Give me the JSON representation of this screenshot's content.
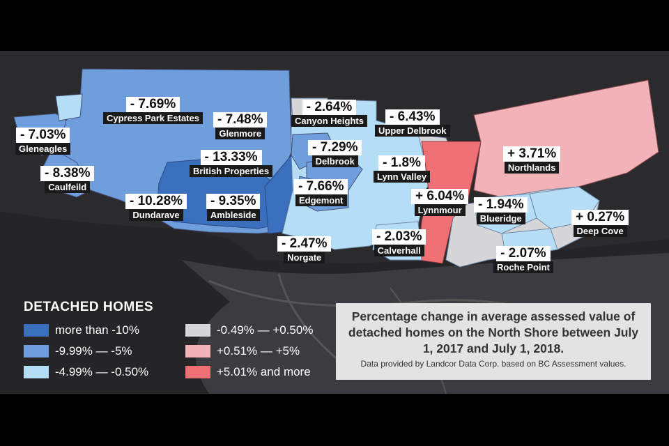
{
  "legend": {
    "title": "DETACHED HOMES",
    "items": [
      {
        "label": "more than -10%",
        "color": "#3a6fbe"
      },
      {
        "label": "-9.99% — -5%",
        "color": "#6e9fdc"
      },
      {
        "label": "-4.99% — -0.50%",
        "color": "#b5ddf5"
      },
      {
        "label": "-0.49% — +0.50%",
        "color": "#d6d6d8"
      },
      {
        "label": "+0.51% — +5%",
        "color": "#f2b3b8"
      },
      {
        "label": "+5.01% and more",
        "color": "#ee6f74"
      }
    ]
  },
  "neighbourhoods": [
    {
      "name": "Cypress Park Estates",
      "change": "- 7.69%"
    },
    {
      "name": "Glenmore",
      "change": "- 7.48%"
    },
    {
      "name": "Canyon Heights",
      "change": "- 2.64%"
    },
    {
      "name": "Upper Delbrook",
      "change": "- 6.43%"
    },
    {
      "name": "Gleneagles",
      "change": "- 7.03%"
    },
    {
      "name": "Delbrook",
      "change": "- 7.29%"
    },
    {
      "name": "Northlands",
      "change": "+ 3.71%"
    },
    {
      "name": "British Properties",
      "change": "- 13.33%"
    },
    {
      "name": "Lynn Valley",
      "change": "- 1.8%"
    },
    {
      "name": "Caulfeild",
      "change": "- 8.38%"
    },
    {
      "name": "Edgemont",
      "change": "- 7.66%"
    },
    {
      "name": "Lynnmour",
      "change": "+ 6.04%"
    },
    {
      "name": "Dundarave",
      "change": "- 10.28%"
    },
    {
      "name": "Ambleside",
      "change": "- 9.35%"
    },
    {
      "name": "Blueridge",
      "change": "- 1.94%"
    },
    {
      "name": "Deep Cove",
      "change": "+ 0.27%"
    },
    {
      "name": "Calverhall",
      "change": "- 2.03%"
    },
    {
      "name": "Norgate",
      "change": "- 2.47%"
    },
    {
      "name": "Roche Point",
      "change": "- 2.07%"
    }
  ],
  "info": {
    "title": "Percentage change in average assessed value of detached homes on the North Shore between July 1, 2017 and July 1, 2018.",
    "note": "Data provided by Landcor Data Corp. based on BC Assessment values."
  }
}
